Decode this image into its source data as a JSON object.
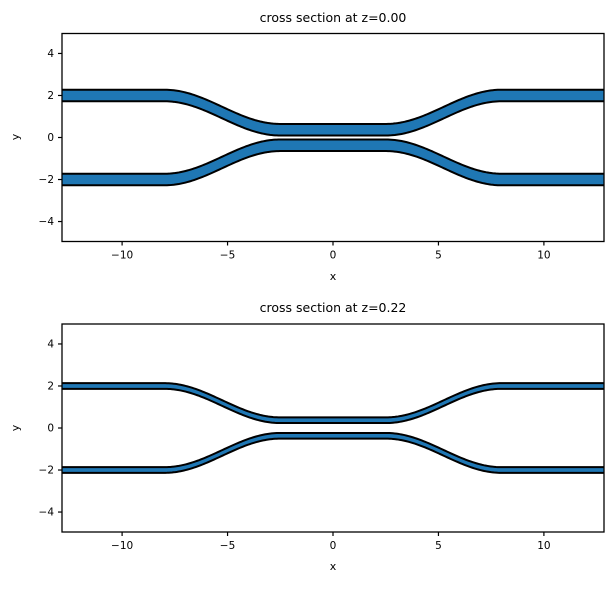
{
  "figure": {
    "background": "#ffffff",
    "waveguide_fill": "#1f77b4",
    "waveguide_edge": "#000000",
    "spine_color": "#000000"
  },
  "subplots": [
    {
      "title": "cross section at z=0.00",
      "xlabel": "x",
      "ylabel": "y",
      "xlim": [
        -12.85,
        12.85
      ],
      "ylim": [
        -4.95,
        4.95
      ],
      "xtick_values": [
        -10,
        -5,
        0,
        5,
        10
      ],
      "xtick_labels": [
        "−10",
        "−5",
        "0",
        "5",
        "10"
      ],
      "ytick_values": [
        4,
        2,
        0,
        -2,
        -4
      ],
      "ytick_labels": [
        "4",
        "2",
        "0",
        "−2",
        "−4"
      ],
      "geometry": {
        "outer_y": 2.0,
        "coupling_y": 0.37,
        "coupling_half_span": 2.5,
        "bend_end": 8.0,
        "width": 0.55
      }
    },
    {
      "title": "cross section at z=0.22",
      "xlabel": "x",
      "ylabel": "y",
      "xlim": [
        -12.85,
        12.85
      ],
      "ylim": [
        -4.95,
        4.95
      ],
      "xtick_values": [
        -10,
        -5,
        0,
        5,
        10
      ],
      "xtick_labels": [
        "−10",
        "−5",
        "0",
        "5",
        "10"
      ],
      "ytick_values": [
        4,
        2,
        0,
        -2,
        -4
      ],
      "ytick_labels": [
        "4",
        "2",
        "0",
        "−2",
        "−4"
      ],
      "geometry": {
        "outer_y": 2.0,
        "coupling_y": 0.37,
        "coupling_half_span": 2.5,
        "bend_end": 8.0,
        "width": 0.27
      }
    }
  ],
  "chart_data": [
    {
      "type": "area",
      "title": "cross section at z=0.00",
      "xlabel": "x",
      "ylabel": "y",
      "xlim": [
        -12.85,
        12.85
      ],
      "ylim": [
        -4.95,
        4.95
      ],
      "xticks": [
        -10,
        -5,
        0,
        5,
        10
      ],
      "yticks": [
        -4,
        -2,
        0,
        2,
        4
      ],
      "grid": false,
      "legend": false,
      "description": "Top-down cross section of a directional-coupler: two mirrored S-bend waveguide strips, filled blue with black edges, clipped at the x-limits.",
      "shapes": [
        {
          "name": "top-waveguide",
          "fill": "#1f77b4",
          "edge": "#000000",
          "strip_width": 0.55,
          "centerline": {
            "outer_y": 2.0,
            "coupling_y": 0.37,
            "straight_outside_abs_x": 8.0,
            "flat_coupling_abs_x": 2.5,
            "bend_profile": "cosine"
          }
        },
        {
          "name": "bottom-waveguide",
          "fill": "#1f77b4",
          "edge": "#000000",
          "strip_width": 0.55,
          "centerline": {
            "outer_y": -2.0,
            "coupling_y": -0.37,
            "straight_outside_abs_x": 8.0,
            "flat_coupling_abs_x": 2.5,
            "bend_profile": "cosine"
          }
        }
      ]
    },
    {
      "type": "area",
      "title": "cross section at z=0.22",
      "xlabel": "x",
      "ylabel": "y",
      "xlim": [
        -12.85,
        12.85
      ],
      "ylim": [
        -4.95,
        4.95
      ],
      "xticks": [
        -10,
        -5,
        0,
        5,
        10
      ],
      "yticks": [
        -4,
        -2,
        0,
        2,
        4
      ],
      "grid": false,
      "legend": false,
      "description": "Same coupler cross section at the waveguide top surface (z=0.22): strips are narrower due to sloped sidewalls.",
      "shapes": [
        {
          "name": "top-waveguide",
          "fill": "#1f77b4",
          "edge": "#000000",
          "strip_width": 0.27,
          "centerline": {
            "outer_y": 2.0,
            "coupling_y": 0.37,
            "straight_outside_abs_x": 8.0,
            "flat_coupling_abs_x": 2.5,
            "bend_profile": "cosine"
          }
        },
        {
          "name": "bottom-waveguide",
          "fill": "#1f77b4",
          "edge": "#000000",
          "strip_width": 0.27,
          "centerline": {
            "outer_y": -2.0,
            "coupling_y": -0.37,
            "straight_outside_abs_x": 8.0,
            "flat_coupling_abs_x": 2.5,
            "bend_profile": "cosine"
          }
        }
      ]
    }
  ]
}
